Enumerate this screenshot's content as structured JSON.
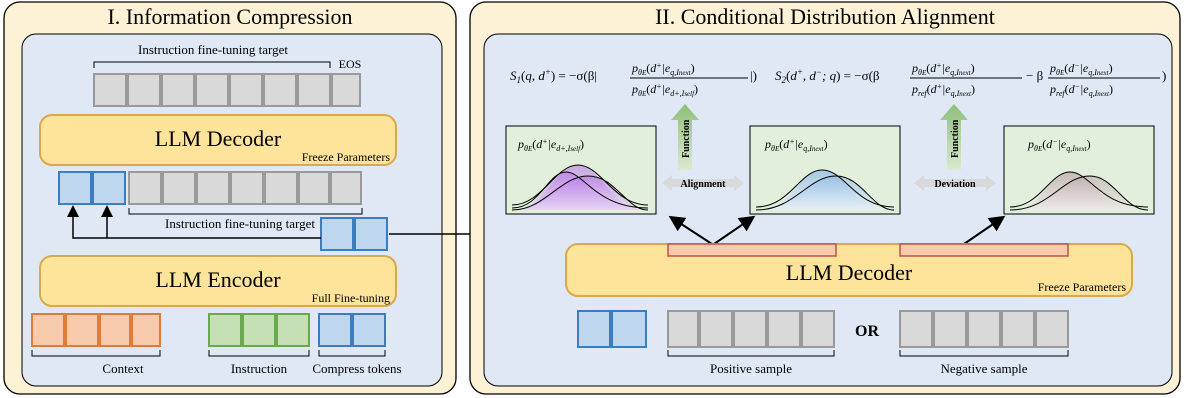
{
  "panel1": {
    "title": "I. Information Compression",
    "top_label": "Instruction fine-tuning target",
    "eos_label": "EOS",
    "decoder": {
      "name": "LLM Decoder",
      "sub": "Freeze Parameters"
    },
    "mid_label": "Instruction fine-tuning target",
    "encoder": {
      "name": "LLM Encoder",
      "sub": "Full Fine-tuning"
    },
    "context_label": "Context",
    "instruction_label": "Instruction",
    "compress_label": "Compress tokens"
  },
  "panel2": {
    "title": "II. Conditional Distribution Alignment",
    "formula1": "S₁(q, d⁺) = −σ(β| p_θE(d⁺|e_q,I_next) / p_θE(d⁺|e_d⁺,I_self) |)",
    "formula2": "S₂(d⁺, d⁻; q) = −σ(β p_θE(d⁺|e_q,I_next)/p_ref(d⁺|e_q,I_next) − β p_θE(d⁻|e_q,I_next)/p_ref(d⁻|e_q,I_next))",
    "dist_left": "p_θE(d⁺|e_d⁺,I_self)",
    "dist_mid": "p_θE(d⁺|e_q,I_next)",
    "dist_right": "p_θE(d⁻|e_q,I_next)",
    "function_label": "Function",
    "alignment_label": "Alignment",
    "deviation_label": "Deviation",
    "decoder": {
      "name": "LLM Decoder",
      "sub": "Freeze Parameters"
    },
    "or_label": "OR",
    "positive_label": "Positive sample",
    "negative_label": "Negative sample"
  },
  "colors": {
    "panel_bg": "#fdf1d6",
    "inner_bg": "#dfe8f4",
    "llm_box": "#fde49a",
    "gray_token": "#d9d9d9",
    "blue_token": "#bfd7ee",
    "orange_token": "#f8cbad",
    "green_token": "#c5e0b4",
    "dist_box": "#e2efda",
    "purple_curve": "#b580e0",
    "blue_curve": "#a9c9ea",
    "gray_curve": "#c8b8b8"
  }
}
